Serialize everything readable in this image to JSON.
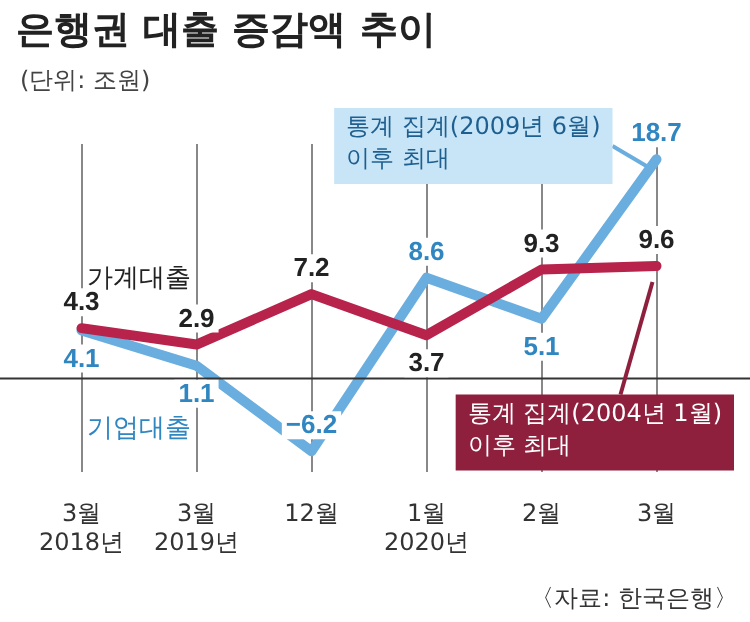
{
  "chart_data": {
    "type": "line",
    "title": "은행권 대출 증감액 추이",
    "subtitle": "(단위: 조원)",
    "categories": [
      "3월\n2018년",
      "3월\n2019년",
      "12월",
      "1월\n2020년",
      "2월",
      "3월"
    ],
    "series": [
      {
        "name": "가계대출",
        "color": "#b8234c",
        "values": [
          4.3,
          2.9,
          7.2,
          3.7,
          9.3,
          9.6
        ],
        "value_labels": [
          "4.3",
          "2.9",
          "7.2",
          "3.7",
          "9.3",
          "9.6"
        ]
      },
      {
        "name": "기업대출",
        "color": "#6aaedf",
        "values": [
          4.1,
          1.1,
          -6.2,
          8.6,
          5.1,
          18.7
        ],
        "value_labels": [
          "4.1",
          "1.1",
          "−6.2",
          "8.6",
          "5.1",
          "18.7"
        ]
      }
    ],
    "ylim": [
      -8,
      20
    ],
    "tick_labels": "x",
    "grid": "x",
    "legend": false,
    "marker": "none",
    "line_style": "solid",
    "ref_lines": [
      {
        "axis": "y",
        "value": 0,
        "color": "#333333"
      }
    ],
    "annotations": [
      {
        "text": "통계 집계(2009년 6월)\n이후 최대",
        "x": "3월",
        "y": 18.7
      },
      {
        "text": "통계 집계(2004년 1월)\n이후 최대",
        "x": "3월",
        "y": 9.6
      },
      "〈자료: 한국은행〉"
    ]
  }
}
